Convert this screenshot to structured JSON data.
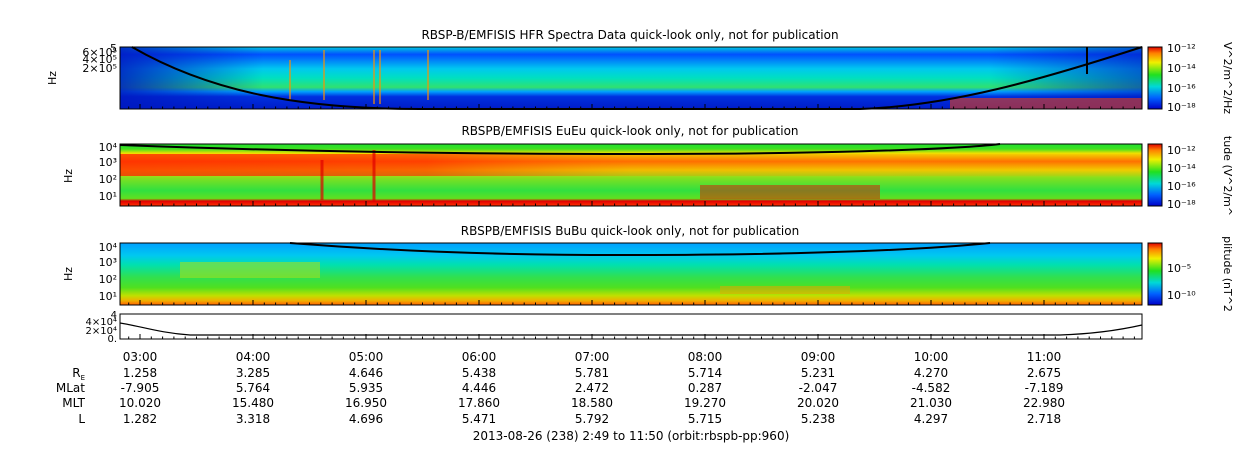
{
  "chart_data": [
    {
      "type": "heatmap",
      "title": "RBSP-B/EMFISIS  HFR Spectra Data quick-look only, not for publication",
      "ylabel": "Hz",
      "yticks": [
        "6×10⁵",
        "4×10⁵",
        "2×10⁵"
      ],
      "ytick_top": "5",
      "colorbar": {
        "label": "V^2/m^2/Hz",
        "ticks": [
          "10⁻¹²",
          "10⁻¹⁴",
          "10⁻¹⁶",
          "10⁻¹⁸"
        ]
      }
    },
    {
      "type": "heatmap",
      "title": "RBSPB/EMFISIS  EuEu quick-look only, not for publication",
      "ylabel": "Hz",
      "yticks": [
        "10⁴",
        "10³",
        "10²",
        "10¹"
      ],
      "colorbar": {
        "label": "tude (V^2/m^",
        "ticks": [
          "10⁻¹²",
          "10⁻¹⁴",
          "10⁻¹⁶",
          "10⁻¹⁸"
        ]
      }
    },
    {
      "type": "heatmap",
      "title": "RBSPB/EMFISIS  BuBu quick-look only, not for publication",
      "ylabel": "Hz",
      "yticks": [
        "10⁴",
        "10³",
        "10²",
        "10¹"
      ],
      "colorbar": {
        "label": "plitude (nT^2",
        "ticks": [
          "10⁻⁵",
          "10⁻¹⁰"
        ]
      }
    },
    {
      "type": "line",
      "yticks": [
        "4×10⁴",
        "2×10⁴",
        "0."
      ],
      "ytick_top": "4"
    }
  ],
  "x_axis": {
    "times": [
      "03:00",
      "04:00",
      "05:00",
      "06:00",
      "07:00",
      "08:00",
      "09:00",
      "10:00",
      "11:00"
    ],
    "rows": [
      {
        "label": "R",
        "sub": "E",
        "values": [
          "1.258",
          "3.285",
          "4.646",
          "5.438",
          "5.781",
          "5.714",
          "5.231",
          "4.270",
          "2.675"
        ]
      },
      {
        "label": "MLat",
        "values": [
          "-7.905",
          "5.764",
          "5.935",
          "4.446",
          "2.472",
          "0.287",
          "-2.047",
          "-4.582",
          "-7.189"
        ]
      },
      {
        "label": "MLT",
        "values": [
          "10.020",
          "15.480",
          "16.950",
          "17.860",
          "18.580",
          "19.270",
          "20.020",
          "21.030",
          "22.980"
        ]
      },
      {
        "label": "L",
        "values": [
          "1.282",
          "3.318",
          "4.696",
          "5.471",
          "5.792",
          "5.715",
          "5.238",
          "4.297",
          "2.718"
        ]
      }
    ],
    "footer": "2013-08-26 (238) 2:49 to 11:50 (orbit:rbspb-pp:960)"
  }
}
